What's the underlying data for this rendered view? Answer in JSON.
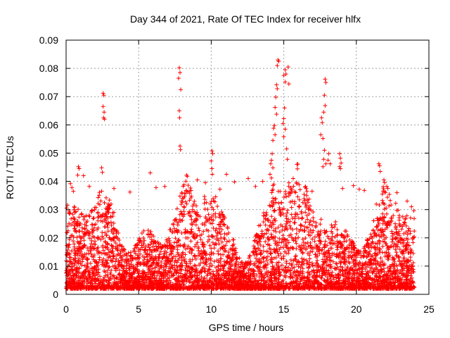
{
  "chart_data": {
    "type": "scatter",
    "title": "Day 344 of 2021, Rate Of TEC Index for receiver hlfx",
    "xlabel": "GPS time / hours",
    "ylabel": "ROTI / TECUs",
    "xlim": [
      0,
      25
    ],
    "ylim": [
      0,
      0.09
    ],
    "xticks": [
      "0",
      "5",
      "10",
      "15",
      "20",
      "25"
    ],
    "yticks": [
      "0",
      "0.01",
      "0.02",
      "0.03",
      "0.04",
      "0.05",
      "0.06",
      "0.07",
      "0.08",
      "0.09"
    ],
    "grid": true,
    "marker": "+",
    "color": "#ff0000",
    "data_x_range": [
      0,
      24
    ],
    "series": [
      {
        "points": [
          [
            2.55,
            0.0712
          ],
          [
            2.6,
            0.0705
          ],
          [
            2.55,
            0.0665
          ],
          [
            2.62,
            0.0645
          ],
          [
            2.58,
            0.0625
          ],
          [
            2.65,
            0.062
          ],
          [
            7.8,
            0.0802
          ],
          [
            7.85,
            0.0785
          ],
          [
            7.75,
            0.0765
          ],
          [
            7.9,
            0.0725
          ],
          [
            7.8,
            0.065
          ],
          [
            7.82,
            0.0625
          ],
          [
            7.85,
            0.0525
          ],
          [
            7.88,
            0.0512
          ],
          [
            10.05,
            0.0508
          ],
          [
            10.1,
            0.0498
          ],
          [
            10.0,
            0.0472
          ],
          [
            10.05,
            0.0445
          ],
          [
            10.08,
            0.0425
          ],
          [
            14.6,
            0.083
          ],
          [
            14.65,
            0.0825
          ],
          [
            14.55,
            0.081
          ],
          [
            15.1,
            0.0795
          ],
          [
            15.15,
            0.078
          ],
          [
            15.0,
            0.0775
          ],
          [
            15.1,
            0.0752
          ],
          [
            15.3,
            0.0805
          ],
          [
            15.35,
            0.0745
          ],
          [
            14.5,
            0.0742
          ],
          [
            14.55,
            0.0728
          ],
          [
            14.45,
            0.0698
          ],
          [
            14.4,
            0.0662
          ],
          [
            14.5,
            0.0638
          ],
          [
            14.35,
            0.0598
          ],
          [
            14.3,
            0.0588
          ],
          [
            14.4,
            0.0565
          ],
          [
            14.25,
            0.0545
          ],
          [
            15.05,
            0.066
          ],
          [
            15.0,
            0.0622
          ],
          [
            14.95,
            0.0605
          ],
          [
            15.1,
            0.0585
          ],
          [
            15.0,
            0.0558
          ],
          [
            15.2,
            0.0515
          ],
          [
            15.25,
            0.0478
          ],
          [
            14.2,
            0.0498
          ],
          [
            14.15,
            0.0475
          ],
          [
            14.1,
            0.0462
          ],
          [
            14.25,
            0.0448
          ],
          [
            14.05,
            0.0425
          ],
          [
            14.15,
            0.0412
          ],
          [
            17.85,
            0.0762
          ],
          [
            17.9,
            0.075
          ],
          [
            17.8,
            0.0705
          ],
          [
            17.85,
            0.0668
          ],
          [
            17.75,
            0.0645
          ],
          [
            17.6,
            0.0625
          ],
          [
            17.65,
            0.0608
          ],
          [
            17.55,
            0.0565
          ],
          [
            17.7,
            0.0552
          ],
          [
            17.8,
            0.051
          ],
          [
            17.75,
            0.0478
          ],
          [
            17.9,
            0.0462
          ],
          [
            17.7,
            0.0452
          ],
          [
            18.1,
            0.0498
          ],
          [
            18.05,
            0.0475
          ],
          [
            18.2,
            0.0462
          ],
          [
            18.85,
            0.0498
          ],
          [
            18.9,
            0.0482
          ],
          [
            18.95,
            0.0465
          ],
          [
            18.85,
            0.0452
          ],
          [
            18.9,
            0.0445
          ],
          [
            21.55,
            0.0462
          ],
          [
            21.6,
            0.0455
          ],
          [
            21.65,
            0.0435
          ],
          [
            21.9,
            0.0405
          ],
          [
            21.95,
            0.0395
          ],
          [
            0.85,
            0.0452
          ],
          [
            0.9,
            0.0445
          ],
          [
            0.8,
            0.0422
          ],
          [
            1.2,
            0.042
          ],
          [
            2.45,
            0.0448
          ],
          [
            2.5,
            0.0432
          ],
          [
            5.8,
            0.043
          ],
          [
            8.3,
            0.0422
          ],
          [
            8.35,
            0.0418
          ],
          [
            11.05,
            0.0425
          ],
          [
            9.05,
            0.0405
          ],
          [
            12.55,
            0.041
          ],
          [
            13.55,
            0.04
          ],
          [
            16.5,
            0.0382
          ],
          [
            16.55,
            0.0375
          ],
          [
            19.8,
            0.0385
          ],
          [
            20.2,
            0.0372
          ],
          [
            22.1,
            0.0382
          ],
          [
            23.5,
            0.033
          ],
          [
            23.8,
            0.031
          ],
          [
            22.8,
            0.036
          ],
          [
            0.3,
            0.0392
          ],
          [
            0.4,
            0.0378
          ],
          [
            0.5,
            0.0365
          ],
          [
            1.6,
            0.0382
          ],
          [
            3.3,
            0.0375
          ],
          [
            4.4,
            0.0362
          ],
          [
            6.2,
            0.0378
          ],
          [
            6.8,
            0.0382
          ],
          [
            9.6,
            0.0395
          ],
          [
            10.6,
            0.0372
          ],
          [
            11.6,
            0.0398
          ],
          [
            13.05,
            0.0382
          ],
          [
            15.9,
            0.0392
          ],
          [
            16.95,
            0.0365
          ],
          [
            19.05,
            0.0375
          ],
          [
            20.55,
            0.0368
          ]
        ]
      }
    ]
  }
}
